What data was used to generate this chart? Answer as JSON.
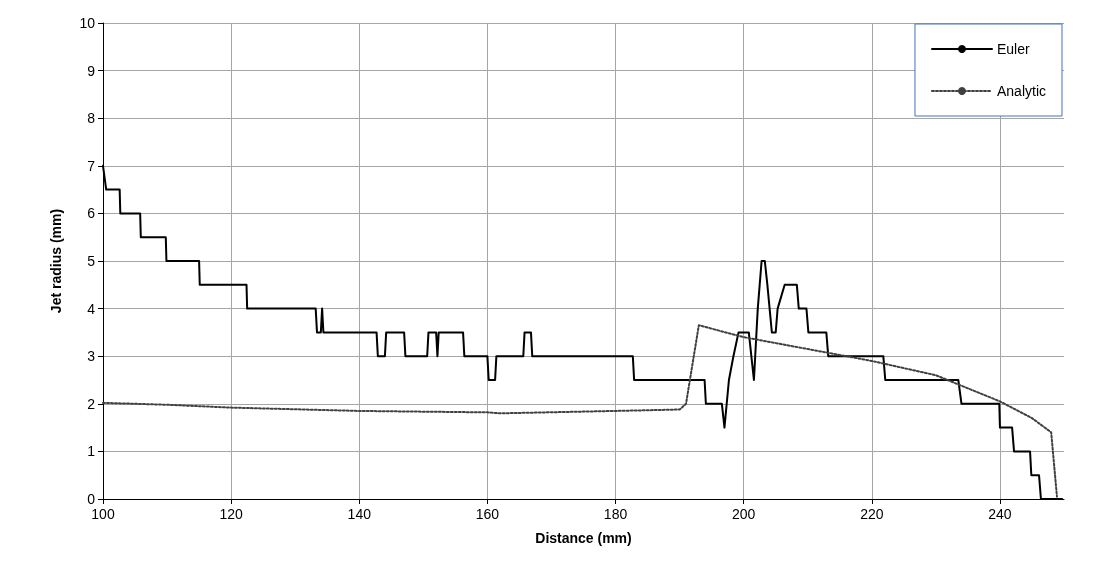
{
  "chart_data": {
    "type": "line",
    "xlabel": "Distance (mm)",
    "ylabel": "Jet radius (mm)",
    "xlim": [
      100,
      250
    ],
    "xticks": [
      100,
      120,
      140,
      160,
      180,
      200,
      220,
      240
    ],
    "ylim": [
      0,
      10
    ],
    "yticks": [
      0,
      1,
      2,
      3,
      4,
      5,
      6,
      7,
      8,
      9,
      10
    ],
    "grid": true,
    "legend": "top right",
    "marker": "none",
    "series": [
      {
        "name": "Euler",
        "color": "#000000",
        "line_style": "solid",
        "x": [
          100,
          100.5,
          102.6,
          102.7,
          105.8,
          105.9,
          109.8,
          109.9,
          115,
          115.1,
          122.4,
          122.5,
          133.2,
          133.4,
          134.0,
          134.2,
          134.4,
          142.7,
          142.9,
          144.0,
          144.2,
          147.0,
          147.2,
          150.6,
          150.8,
          152.0,
          152.2,
          152.4,
          156.2,
          156.4,
          160.0,
          160.2,
          161.2,
          161.4,
          165.6,
          165.8,
          166.8,
          167.0,
          182.7,
          182.9,
          193.9,
          194.1,
          196.6,
          197.0,
          197.7,
          198.4,
          199.2,
          200.8,
          201.2,
          201.6,
          202.2,
          202.8,
          203.3,
          203.7,
          204.4,
          205.0,
          205.3,
          206.4,
          208.3,
          208.6,
          209.8,
          210.1,
          212.9,
          213.2,
          221.8,
          222.1,
          233.5,
          234.0,
          239.9,
          240.0,
          241.9,
          242.2,
          244.7,
          244.9,
          246.1,
          246.4,
          249.7
        ],
        "values": [
          7,
          6.5,
          6.5,
          6,
          6,
          5.5,
          5.5,
          5,
          5,
          4.5,
          4.5,
          4,
          4,
          3.5,
          3.5,
          4,
          3.5,
          3.5,
          3,
          3,
          3.5,
          3.5,
          3,
          3,
          3.5,
          3.5,
          3,
          3.5,
          3.5,
          3,
          3,
          2.5,
          2.5,
          3,
          3,
          3.5,
          3.5,
          3,
          3,
          2.5,
          2.5,
          2,
          2,
          1.5,
          2.5,
          3,
          3.5,
          3.5,
          3,
          2.5,
          4,
          5,
          5,
          4.5,
          3.5,
          3.5,
          4,
          4.5,
          4.5,
          4,
          4,
          3.5,
          3.5,
          3,
          3,
          2.5,
          2.5,
          2,
          2,
          1.5,
          1.5,
          1,
          1,
          0.5,
          0.5,
          0,
          0
        ]
      },
      {
        "name": "Analytic",
        "color": "#404040",
        "line_style": "dotted",
        "x": [
          100,
          110,
          120,
          140,
          160,
          162,
          180,
          190,
          191,
          193,
          200,
          210,
          220,
          230,
          240,
          245,
          248,
          248.9
        ],
        "values": [
          2.02,
          1.98,
          1.92,
          1.85,
          1.82,
          1.8,
          1.85,
          1.88,
          2.0,
          3.65,
          3.4,
          3.15,
          2.9,
          2.6,
          2.05,
          1.7,
          1.4,
          0.05
        ]
      }
    ]
  }
}
